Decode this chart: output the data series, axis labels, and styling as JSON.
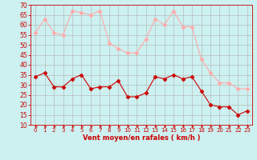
{
  "hours": [
    0,
    1,
    2,
    3,
    4,
    5,
    6,
    7,
    8,
    9,
    10,
    11,
    12,
    13,
    14,
    15,
    16,
    17,
    18,
    19,
    20,
    21,
    22,
    23
  ],
  "wind_avg": [
    34,
    36,
    29,
    29,
    33,
    35,
    28,
    29,
    29,
    32,
    24,
    24,
    26,
    34,
    33,
    35,
    33,
    34,
    27,
    20,
    19,
    19,
    15,
    17
  ],
  "wind_gust": [
    56,
    63,
    56,
    55,
    67,
    66,
    65,
    67,
    51,
    48,
    46,
    46,
    53,
    63,
    60,
    67,
    59,
    59,
    43,
    36,
    31,
    31,
    28,
    28
  ],
  "bg_color": "#cdf0f0",
  "grid_color": "#b0b0b0",
  "line_avg_color": "#cc0000",
  "line_gust_color": "#ffaaaa",
  "xlabel": "Vent moyen/en rafales ( km/h )",
  "xlabel_color": "#cc0000",
  "tick_color": "#cc0000",
  "ylim": [
    10,
    70
  ],
  "yticks": [
    10,
    15,
    20,
    25,
    30,
    35,
    40,
    45,
    50,
    55,
    60,
    65,
    70
  ],
  "figsize": [
    3.2,
    2.0
  ],
  "dpi": 100
}
